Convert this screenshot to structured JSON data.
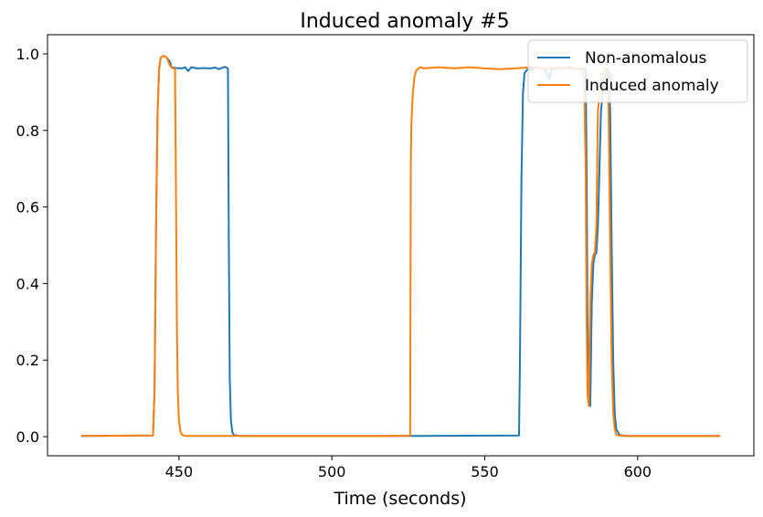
{
  "chart_data": {
    "type": "line",
    "title": "Induced anomaly #5",
    "xlabel": "Time (seconds)",
    "ylabel": "",
    "xlim": [
      407,
      638
    ],
    "ylim": [
      -0.05,
      1.05
    ],
    "xticks": [
      450,
      500,
      550,
      600
    ],
    "yticks": [
      0.0,
      0.2,
      0.4,
      0.6,
      0.8,
      1.0
    ],
    "xtick_labels": [
      "450",
      "500",
      "550",
      "600"
    ],
    "ytick_labels": [
      "0.0",
      "0.2",
      "0.4",
      "0.6",
      "0.8",
      "1.0"
    ],
    "grid": false,
    "legend_position": "top-right",
    "series": [
      {
        "name": "Non-anomalous",
        "color": "#1f77b4",
        "x": [
          418,
          441.5,
          442,
          442.5,
          443,
          443.5,
          444,
          445,
          446,
          447,
          447.5,
          449,
          451,
          452,
          453,
          454,
          456,
          458,
          460,
          462,
          463,
          465,
          466,
          466.3,
          466.6,
          467,
          467.5,
          468,
          470,
          500,
          530,
          561.2,
          561.5,
          562,
          562.5,
          563,
          564,
          566,
          568,
          569,
          570,
          570.5,
          571,
          571.5,
          572,
          574,
          576,
          578,
          580,
          582,
          583,
          583.3,
          583.6,
          584,
          584.5,
          585,
          585.5,
          586,
          586.5,
          587,
          588,
          589,
          590,
          590.5,
          591,
          591.5,
          592,
          592.5,
          593,
          594,
          595,
          597,
          627
        ],
        "y": [
          0.002,
          0.003,
          0.12,
          0.55,
          0.85,
          0.96,
          0.99,
          0.995,
          0.99,
          0.98,
          0.965,
          0.963,
          0.962,
          0.965,
          0.955,
          0.965,
          0.962,
          0.963,
          0.962,
          0.964,
          0.96,
          0.966,
          0.962,
          0.5,
          0.15,
          0.04,
          0.01,
          0.004,
          0.002,
          0.002,
          0.002,
          0.003,
          0.2,
          0.68,
          0.9,
          0.95,
          0.96,
          0.962,
          0.965,
          0.962,
          0.955,
          0.945,
          0.935,
          0.95,
          0.96,
          0.963,
          0.962,
          0.965,
          0.96,
          0.962,
          0.96,
          0.7,
          0.3,
          0.11,
          0.08,
          0.35,
          0.45,
          0.475,
          0.48,
          0.55,
          0.85,
          0.93,
          0.96,
          0.955,
          0.85,
          0.5,
          0.2,
          0.06,
          0.02,
          0.005,
          0.003,
          0.002,
          0.002
        ]
      },
      {
        "name": "Induced anomaly",
        "color": "#ff7f0e",
        "x": [
          418,
          441.5,
          442,
          442.5,
          443,
          443.5,
          444,
          445,
          446,
          447,
          447.5,
          448,
          448.7,
          449,
          449.3,
          449.6,
          450,
          450.5,
          451,
          452,
          460,
          480,
          500,
          520,
          525.6,
          525.8,
          526,
          526.5,
          527,
          527.5,
          528,
          529,
          530,
          535,
          540,
          545,
          550,
          555,
          560,
          565,
          570,
          575,
          578,
          580,
          581,
          582,
          582.5,
          583,
          583.3,
          583.6,
          584,
          584.5,
          585,
          585.5,
          586,
          586.5,
          587,
          588,
          589,
          590,
          590.5,
          591,
          591.5,
          592,
          592.5,
          593,
          594,
          595,
          597,
          627
        ],
        "y": [
          0.002,
          0.003,
          0.12,
          0.55,
          0.85,
          0.96,
          0.99,
          0.995,
          0.99,
          0.97,
          0.965,
          0.962,
          0.962,
          0.65,
          0.3,
          0.12,
          0.04,
          0.012,
          0.005,
          0.002,
          0.002,
          0.002,
          0.002,
          0.002,
          0.003,
          0.7,
          0.82,
          0.9,
          0.94,
          0.955,
          0.96,
          0.965,
          0.962,
          0.965,
          0.962,
          0.965,
          0.962,
          0.96,
          0.962,
          0.965,
          0.962,
          0.964,
          0.962,
          0.96,
          0.962,
          0.955,
          0.93,
          0.7,
          0.3,
          0.11,
          0.08,
          0.35,
          0.45,
          0.475,
          0.48,
          0.55,
          0.85,
          0.93,
          0.96,
          0.955,
          0.85,
          0.5,
          0.2,
          0.06,
          0.02,
          0.005,
          0.003,
          0.002,
          0.002,
          0.002
        ]
      }
    ]
  }
}
